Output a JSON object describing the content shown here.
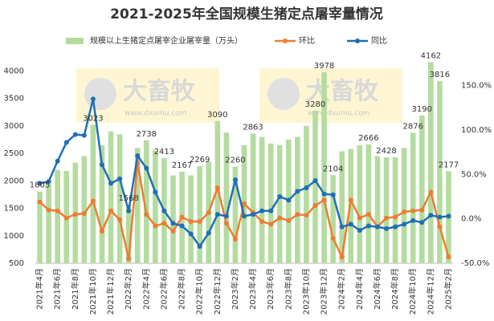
{
  "chart_data": {
    "type": "combo",
    "title": "2021-2025年全国规模生猪定点屠宰量情况",
    "annotations": [
      "大畜牧",
      "www.dxumu.com"
    ],
    "categories": [
      "2021年4月",
      null,
      "2021年6月",
      null,
      "2021年8月",
      null,
      "2021年10月",
      null,
      "2021年12月",
      null,
      "2022年2月",
      null,
      "2022年4月",
      null,
      "2022年6月",
      null,
      "2022年8月",
      null,
      "2022年10月",
      null,
      "2022年12月",
      null,
      "2023年2月",
      null,
      "2023年4月",
      null,
      "2023年6月",
      null,
      "2023年8月",
      null,
      "2023年10月",
      null,
      "2023年12月",
      null,
      "2024年2月",
      null,
      "2024年4月",
      null,
      "2024年6月",
      null,
      "2024年8月",
      null,
      "2024年10月",
      null,
      "2024年12月",
      null,
      "2025年2月"
    ],
    "series": [
      {
        "name": "规模以上生猪定点屠宰企业屠宰量（万头）",
        "type": "bar",
        "color": "#b4dca0",
        "values": [
          1805,
          1950,
          2200,
          2180,
          2330,
          2450,
          3023,
          2650,
          2900,
          2850,
          1568,
          2600,
          2738,
          2550,
          2413,
          2100,
          2167,
          2100,
          2269,
          2350,
          3090,
          2880,
          2260,
          2650,
          2863,
          2800,
          2680,
          2650,
          2750,
          2800,
          3000,
          3280,
          3978,
          2104,
          2540,
          2580,
          2650,
          2666,
          2450,
          2428,
          2430,
          2600,
          2876,
          3190,
          4162,
          3816,
          2177
        ],
        "value_labels": [
          "1805",
          null,
          null,
          null,
          null,
          null,
          "3023",
          null,
          null,
          null,
          "1568",
          null,
          "2738",
          null,
          "2413",
          null,
          "2167",
          null,
          "2269",
          null,
          "3090",
          null,
          "2260",
          null,
          "2863",
          null,
          null,
          null,
          null,
          null,
          null,
          "3280",
          "3978",
          "2104",
          null,
          null,
          null,
          "2666",
          null,
          "2428",
          null,
          null,
          "2876",
          "3190",
          "4162",
          "3816",
          "2177"
        ]
      },
      {
        "name": "环比",
        "type": "line",
        "axis": "y2",
        "color": "#ed7d31",
        "values": [
          19,
          10,
          9,
          1,
          5,
          6,
          20,
          -14,
          9,
          -1,
          -45,
          63,
          5,
          -8,
          -5,
          -14,
          2,
          -3,
          -3,
          7,
          35,
          -5,
          -23,
          17,
          7,
          -3,
          -6,
          1,
          -2,
          5,
          4,
          15,
          21,
          -22,
          -43,
          21,
          1,
          5,
          -9,
          1,
          2,
          8,
          9,
          10,
          30,
          -9,
          -43
        ]
      },
      {
        "name": "同比",
        "type": "line",
        "axis": "y2",
        "color": "#1f6fb4",
        "values": [
          40,
          42,
          65,
          86,
          95,
          94,
          135,
          61,
          40,
          45,
          9,
          71,
          57,
          30,
          9,
          -5,
          -8,
          -17,
          -31,
          -16,
          5,
          3,
          44,
          3,
          5,
          9,
          9,
          25,
          21,
          31,
          35,
          43,
          28,
          27,
          -9,
          -6,
          -13,
          -8,
          -9,
          -11,
          -9,
          -6,
          -2,
          -4,
          4,
          2,
          3
        ]
      }
    ],
    "ylim": [
      500,
      4300
    ],
    "yticks": [
      500,
      1000,
      1500,
      2000,
      2500,
      3000,
      3500,
      4000
    ],
    "y2lim": [
      -50,
      185
    ],
    "y2ticks": [
      {
        "value": -50,
        "label": "-50.0%"
      },
      {
        "value": 0,
        "label": "0.0%"
      },
      {
        "value": 50,
        "label": "50.0%"
      },
      {
        "value": 100,
        "label": "100.0%"
      },
      {
        "value": 150,
        "label": "150.0%"
      }
    ],
    "grid": false,
    "legend": "top"
  }
}
